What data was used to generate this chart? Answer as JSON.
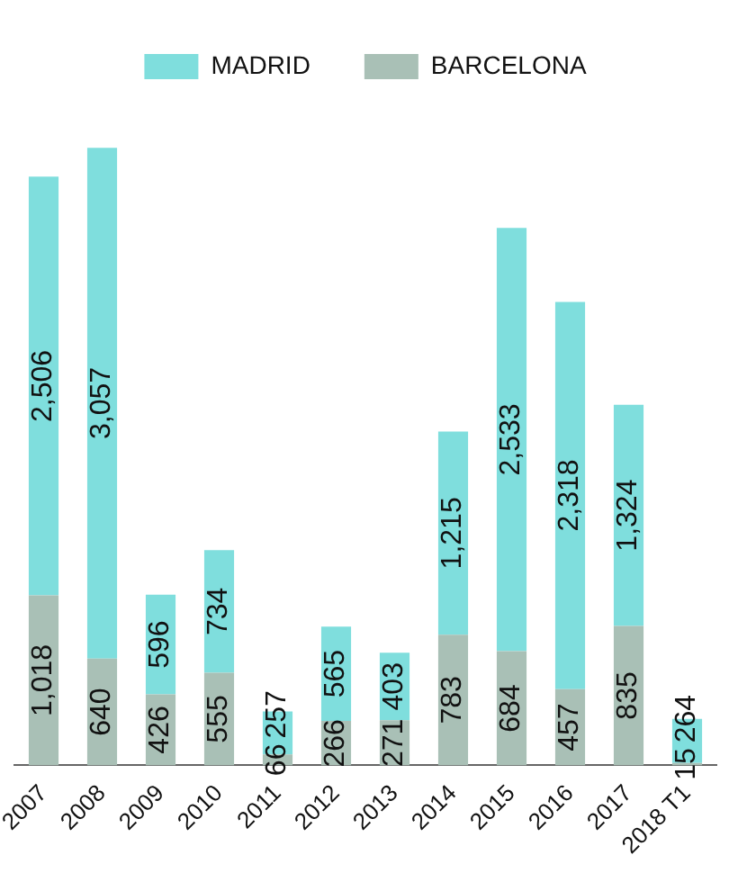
{
  "chart_data": {
    "type": "bar",
    "stacked": true,
    "legend": "top",
    "grid": false,
    "categories": [
      "2007",
      "2008",
      "2009",
      "2010",
      "2011",
      "2012",
      "2013",
      "2014",
      "2015",
      "2016",
      "2017",
      "2018 T1"
    ],
    "series": [
      {
        "name": "BARCELONA",
        "color": "#a9c0b6",
        "values": [
          1018,
          640,
          426,
          555,
          66,
          266,
          271,
          783,
          684,
          457,
          835,
          15
        ],
        "value_labels": [
          "1,018",
          "640",
          "426",
          "555",
          "66",
          "266",
          "271",
          "783",
          "684",
          "457",
          "835",
          "15"
        ]
      },
      {
        "name": "MADRID",
        "color": "#7fdedd",
        "values": [
          2506,
          3057,
          596,
          734,
          257,
          565,
          403,
          1215,
          2533,
          2318,
          1324,
          264
        ],
        "value_labels": [
          "2,506",
          "3,057",
          "596",
          "734",
          "257",
          "565",
          "403",
          "1,215",
          "2,533",
          "2,318",
          "1,324",
          "264"
        ]
      }
    ]
  }
}
